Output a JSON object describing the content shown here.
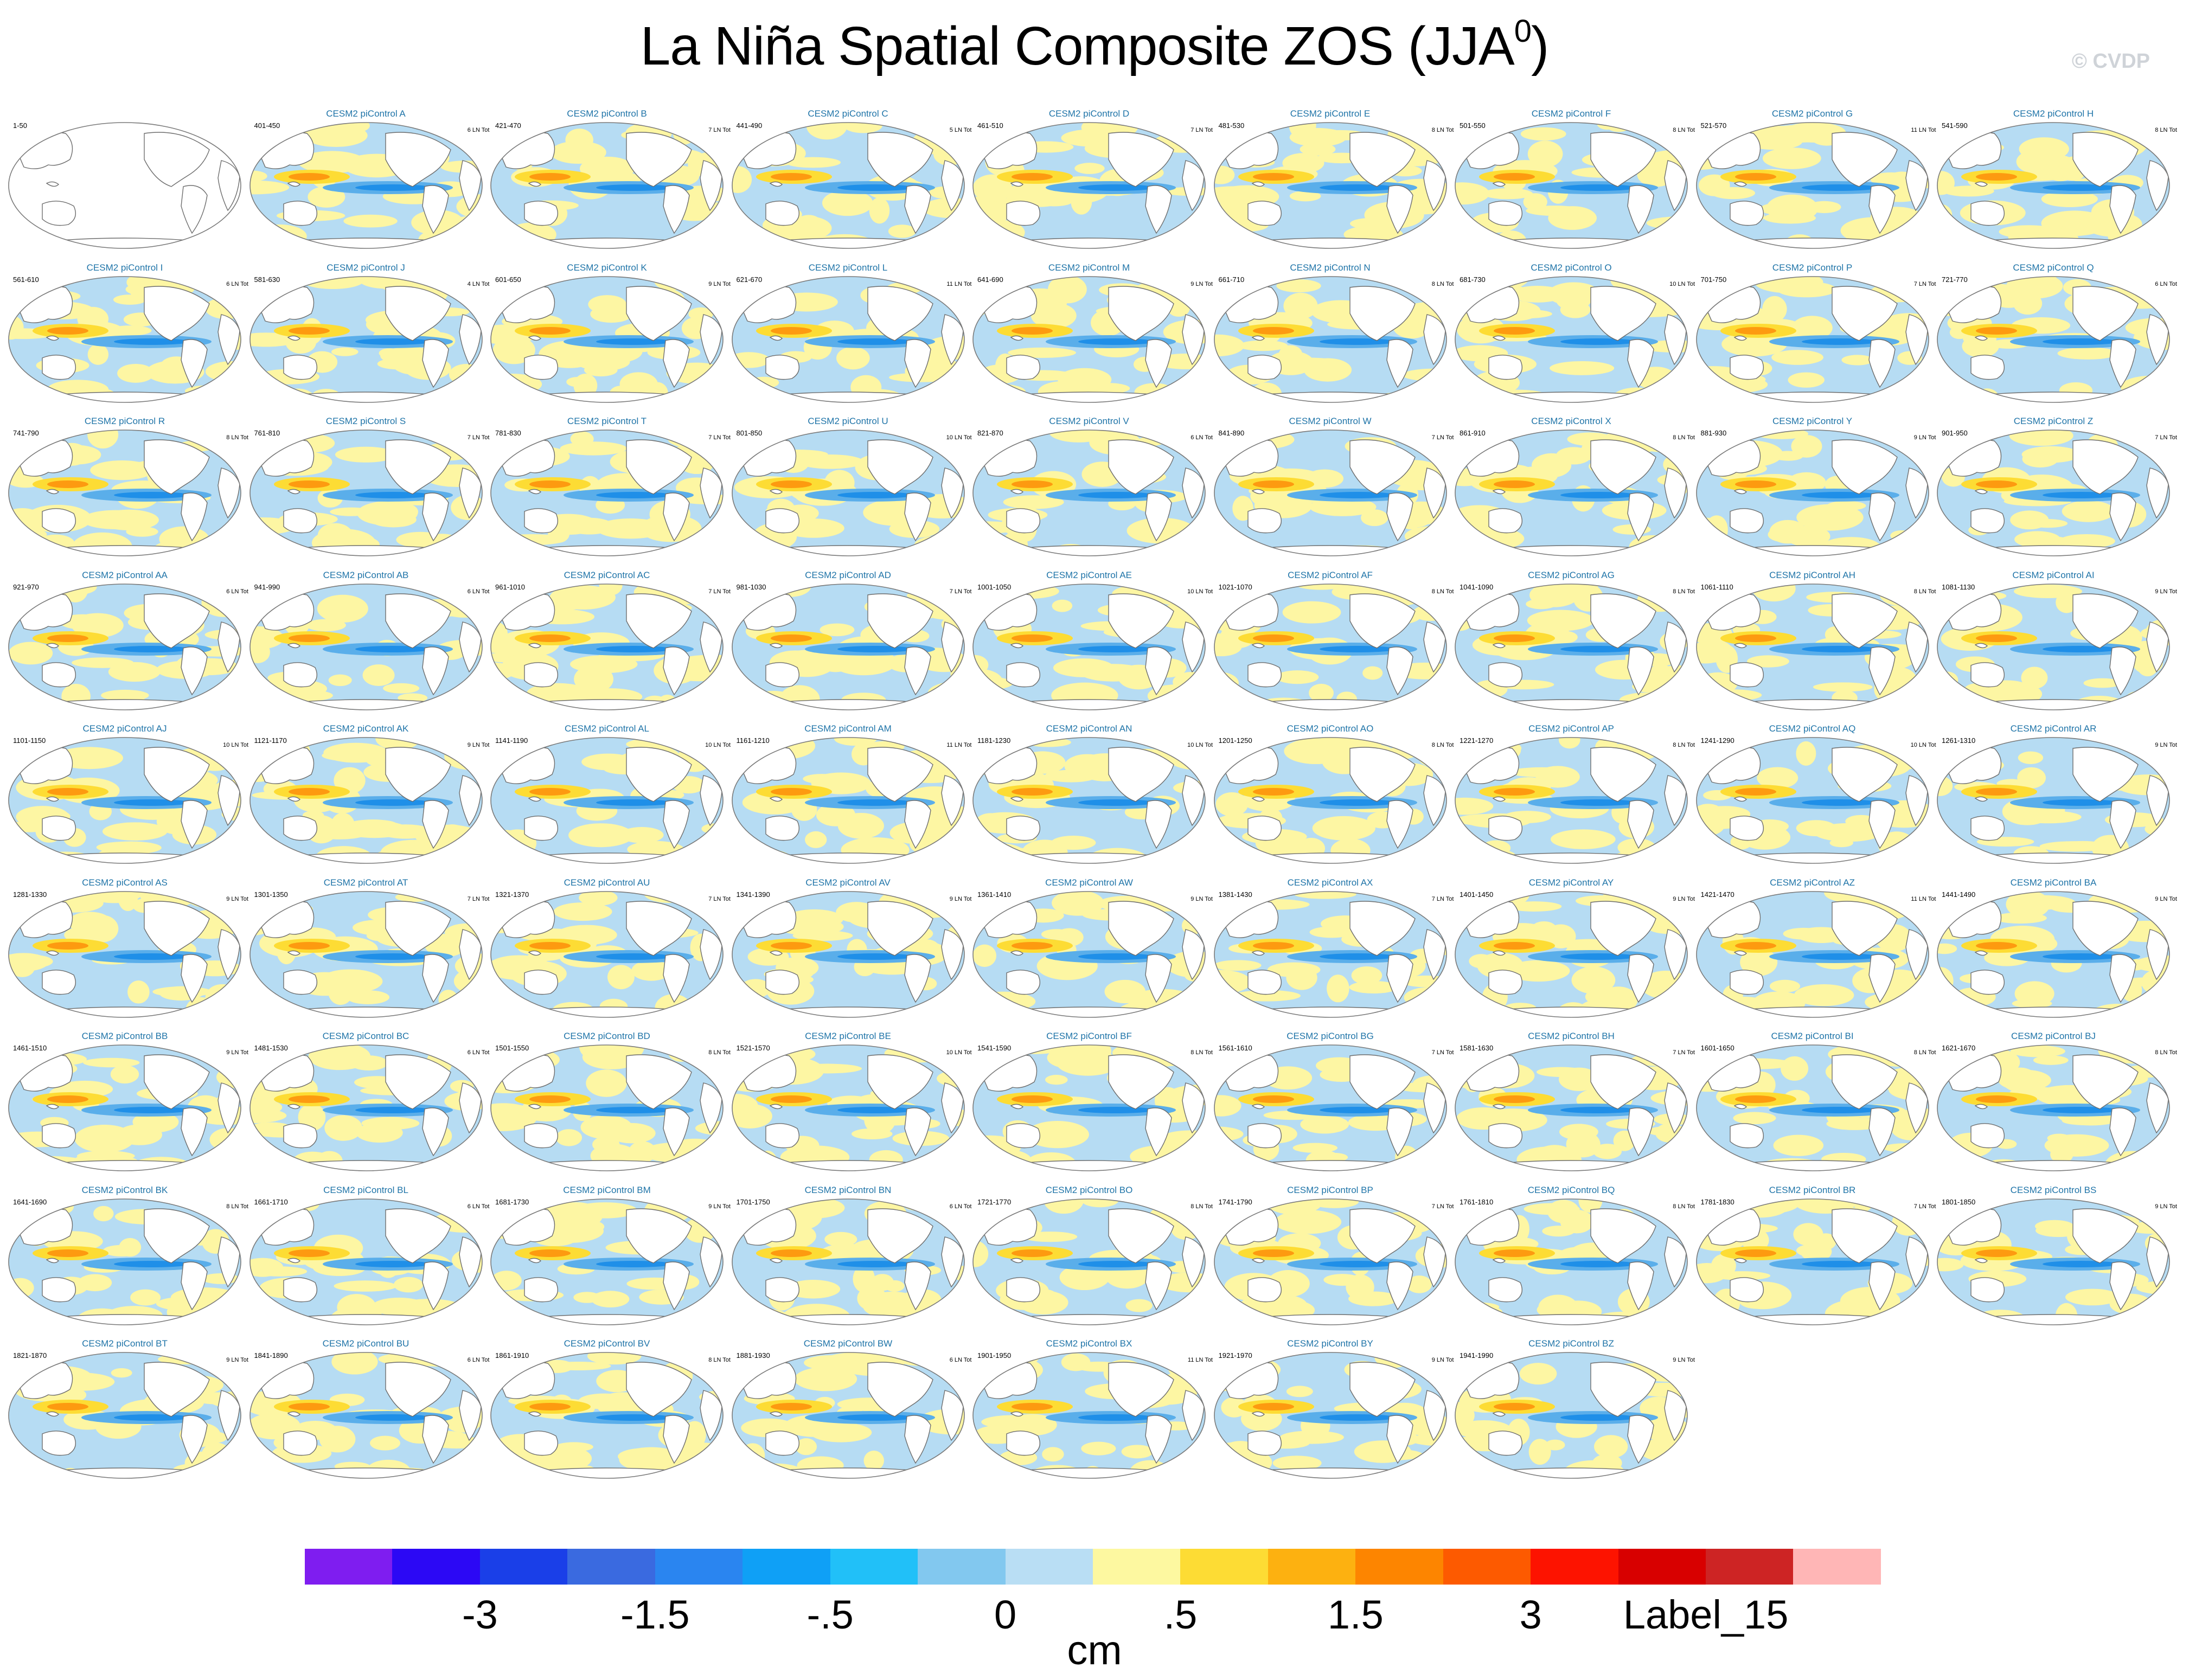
{
  "title": {
    "main": "La Niña Spatial Composite ZOS (JJA",
    "superscript": "0",
    "close": ")"
  },
  "watermark": "© CVDP",
  "colors": {
    "land": "#ffffff",
    "ocean_pale_blue": "#b6dcf3",
    "ocean_light_yellow": "#fdf6a3",
    "coast": "#6e6e6e",
    "title_blue": "#1f74a8"
  },
  "panels": [
    {
      "title": "",
      "left": "1-50",
      "right": "",
      "blank": true
    },
    {
      "title": "CESM2 piControl A",
      "left": "401-450",
      "right": "6 LN Tot"
    },
    {
      "title": "CESM2 piControl B",
      "left": "421-470",
      "right": "7 LN Tot"
    },
    {
      "title": "CESM2 piControl C",
      "left": "441-490",
      "right": "5 LN Tot"
    },
    {
      "title": "CESM2 piControl D",
      "left": "461-510",
      "right": "7 LN Tot"
    },
    {
      "title": "CESM2 piControl E",
      "left": "481-530",
      "right": "8 LN Tot"
    },
    {
      "title": "CESM2 piControl F",
      "left": "501-550",
      "right": "8 LN Tot"
    },
    {
      "title": "CESM2 piControl G",
      "left": "521-570",
      "right": "11 LN Tot"
    },
    {
      "title": "CESM2 piControl H",
      "left": "541-590",
      "right": "8 LN Tot"
    },
    {
      "title": "CESM2 piControl I",
      "left": "561-610",
      "right": "6 LN Tot"
    },
    {
      "title": "CESM2 piControl J",
      "left": "581-630",
      "right": "4 LN Tot"
    },
    {
      "title": "CESM2 piControl K",
      "left": "601-650",
      "right": "9 LN Tot"
    },
    {
      "title": "CESM2 piControl L",
      "left": "621-670",
      "right": "11 LN Tot"
    },
    {
      "title": "CESM2 piControl M",
      "left": "641-690",
      "right": "9 LN Tot"
    },
    {
      "title": "CESM2 piControl N",
      "left": "661-710",
      "right": "8 LN Tot"
    },
    {
      "title": "CESM2 piControl O",
      "left": "681-730",
      "right": "10 LN Tot"
    },
    {
      "title": "CESM2 piControl P",
      "left": "701-750",
      "right": "7 LN Tot"
    },
    {
      "title": "CESM2 piControl Q",
      "left": "721-770",
      "right": "6 LN Tot"
    },
    {
      "title": "CESM2 piControl R",
      "left": "741-790",
      "right": "8 LN Tot"
    },
    {
      "title": "CESM2 piControl S",
      "left": "761-810",
      "right": "7 LN Tot"
    },
    {
      "title": "CESM2 piControl T",
      "left": "781-830",
      "right": "7 LN Tot"
    },
    {
      "title": "CESM2 piControl U",
      "left": "801-850",
      "right": "10 LN Tot"
    },
    {
      "title": "CESM2 piControl V",
      "left": "821-870",
      "right": "6 LN Tot"
    },
    {
      "title": "CESM2 piControl W",
      "left": "841-890",
      "right": "7 LN Tot"
    },
    {
      "title": "CESM2 piControl X",
      "left": "861-910",
      "right": "8 LN Tot"
    },
    {
      "title": "CESM2 piControl Y",
      "left": "881-930",
      "right": "9 LN Tot"
    },
    {
      "title": "CESM2 piControl Z",
      "left": "901-950",
      "right": "7 LN Tot"
    },
    {
      "title": "CESM2 piControl AA",
      "left": "921-970",
      "right": "6 LN Tot"
    },
    {
      "title": "CESM2 piControl AB",
      "left": "941-990",
      "right": "6 LN Tot"
    },
    {
      "title": "CESM2 piControl AC",
      "left": "961-1010",
      "right": "7 LN Tot"
    },
    {
      "title": "CESM2 piControl AD",
      "left": "981-1030",
      "right": "7 LN Tot"
    },
    {
      "title": "CESM2 piControl AE",
      "left": "1001-1050",
      "right": "10 LN Tot"
    },
    {
      "title": "CESM2 piControl AF",
      "left": "1021-1070",
      "right": "8 LN Tot"
    },
    {
      "title": "CESM2 piControl AG",
      "left": "1041-1090",
      "right": "8 LN Tot"
    },
    {
      "title": "CESM2 piControl AH",
      "left": "1061-1110",
      "right": "8 LN Tot"
    },
    {
      "title": "CESM2 piControl AI",
      "left": "1081-1130",
      "right": "9 LN Tot"
    },
    {
      "title": "CESM2 piControl AJ",
      "left": "1101-1150",
      "right": "10 LN Tot"
    },
    {
      "title": "CESM2 piControl AK",
      "left": "1121-1170",
      "right": "9 LN Tot"
    },
    {
      "title": "CESM2 piControl AL",
      "left": "1141-1190",
      "right": "10 LN Tot"
    },
    {
      "title": "CESM2 piControl AM",
      "left": "1161-1210",
      "right": "11 LN Tot"
    },
    {
      "title": "CESM2 piControl AN",
      "left": "1181-1230",
      "right": "10 LN Tot"
    },
    {
      "title": "CESM2 piControl AO",
      "left": "1201-1250",
      "right": "8 LN Tot"
    },
    {
      "title": "CESM2 piControl AP",
      "left": "1221-1270",
      "right": "8 LN Tot"
    },
    {
      "title": "CESM2 piControl AQ",
      "left": "1241-1290",
      "right": "10 LN Tot"
    },
    {
      "title": "CESM2 piControl AR",
      "left": "1261-1310",
      "right": "9 LN Tot"
    },
    {
      "title": "CESM2 piControl AS",
      "left": "1281-1330",
      "right": "9 LN Tot"
    },
    {
      "title": "CESM2 piControl AT",
      "left": "1301-1350",
      "right": "7 LN Tot"
    },
    {
      "title": "CESM2 piControl AU",
      "left": "1321-1370",
      "right": "7 LN Tot"
    },
    {
      "title": "CESM2 piControl AV",
      "left": "1341-1390",
      "right": "9 LN Tot"
    },
    {
      "title": "CESM2 piControl AW",
      "left": "1361-1410",
      "right": "9 LN Tot"
    },
    {
      "title": "CESM2 piControl AX",
      "left": "1381-1430",
      "right": "7 LN Tot"
    },
    {
      "title": "CESM2 piControl AY",
      "left": "1401-1450",
      "right": "9 LN Tot"
    },
    {
      "title": "CESM2 piControl AZ",
      "left": "1421-1470",
      "right": "11 LN Tot"
    },
    {
      "title": "CESM2 piControl BA",
      "left": "1441-1490",
      "right": "9 LN Tot"
    },
    {
      "title": "CESM2 piControl BB",
      "left": "1461-1510",
      "right": "9 LN Tot"
    },
    {
      "title": "CESM2 piControl BC",
      "left": "1481-1530",
      "right": "6 LN Tot"
    },
    {
      "title": "CESM2 piControl BD",
      "left": "1501-1550",
      "right": "8 LN Tot"
    },
    {
      "title": "CESM2 piControl BE",
      "left": "1521-1570",
      "right": "10 LN Tot"
    },
    {
      "title": "CESM2 piControl BF",
      "left": "1541-1590",
      "right": "8 LN Tot"
    },
    {
      "title": "CESM2 piControl BG",
      "left": "1561-1610",
      "right": "7 LN Tot"
    },
    {
      "title": "CESM2 piControl BH",
      "left": "1581-1630",
      "right": "7 LN Tot"
    },
    {
      "title": "CESM2 piControl BI",
      "left": "1601-1650",
      "right": "8 LN Tot"
    },
    {
      "title": "CESM2 piControl BJ",
      "left": "1621-1670",
      "right": "8 LN Tot"
    },
    {
      "title": "CESM2 piControl BK",
      "left": "1641-1690",
      "right": "8 LN Tot"
    },
    {
      "title": "CESM2 piControl BL",
      "left": "1661-1710",
      "right": "6 LN Tot"
    },
    {
      "title": "CESM2 piControl BM",
      "left": "1681-1730",
      "right": "9 LN Tot"
    },
    {
      "title": "CESM2 piControl BN",
      "left": "1701-1750",
      "right": "6 LN Tot"
    },
    {
      "title": "CESM2 piControl BO",
      "left": "1721-1770",
      "right": "8 LN Tot"
    },
    {
      "title": "CESM2 piControl BP",
      "left": "1741-1790",
      "right": "7 LN Tot"
    },
    {
      "title": "CESM2 piControl BQ",
      "left": "1761-1810",
      "right": "8 LN Tot"
    },
    {
      "title": "CESM2 piControl BR",
      "left": "1781-1830",
      "right": "7 LN Tot"
    },
    {
      "title": "CESM2 piControl BS",
      "left": "1801-1850",
      "right": "9 LN Tot"
    },
    {
      "title": "CESM2 piControl BT",
      "left": "1821-1870",
      "right": "9 LN Tot"
    },
    {
      "title": "CESM2 piControl BU",
      "left": "1841-1890",
      "right": "6 LN Tot"
    },
    {
      "title": "CESM2 piControl BV",
      "left": "1861-1910",
      "right": "8 LN Tot"
    },
    {
      "title": "CESM2 piControl BW",
      "left": "1881-1930",
      "right": "6 LN Tot"
    },
    {
      "title": "CESM2 piControl BX",
      "left": "1901-1950",
      "right": "11 LN Tot"
    },
    {
      "title": "CESM2 piControl BY",
      "left": "1921-1970",
      "right": "9 LN Tot"
    },
    {
      "title": "CESM2 piControl BZ",
      "left": "1941-1990",
      "right": "9 LN Tot"
    }
  ],
  "colorbar": {
    "colors": [
      "#7f1df0",
      "#2c08f5",
      "#1a3fe8",
      "#3a6ae0",
      "#2a85f0",
      "#0fa0f6",
      "#21c0f8",
      "#82c8ef",
      "#b9def4",
      "#fdf8a0",
      "#fddc34",
      "#fdb110",
      "#fd8500",
      "#fd5a00",
      "#fd1300",
      "#d80000",
      "#cd2424",
      "#ffb6b6"
    ],
    "labels": [
      "-3",
      "-1.5",
      "-.5",
      "0",
      ".5",
      "1.5",
      "3",
      "Label_15"
    ],
    "label_box_positions": [
      2,
      4,
      6,
      8,
      10,
      12,
      14,
      16
    ],
    "units": "cm"
  }
}
